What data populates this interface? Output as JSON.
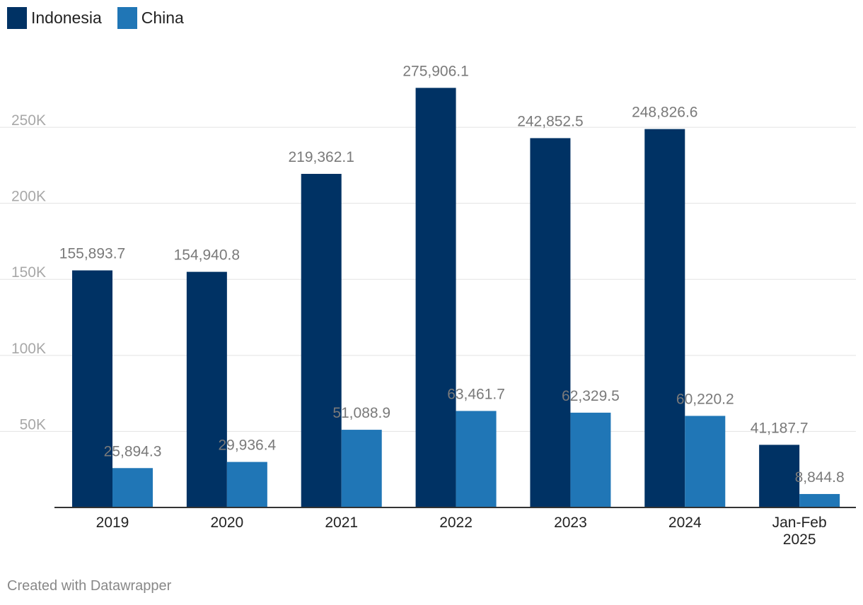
{
  "legend": {
    "items": [
      {
        "label": "Indonesia",
        "color": "#003264"
      },
      {
        "label": "China",
        "color": "#2076b6"
      }
    ]
  },
  "chart_data": {
    "type": "bar",
    "categories": [
      [
        "2019"
      ],
      [
        "2020"
      ],
      [
        "2021"
      ],
      [
        "2022"
      ],
      [
        "2023"
      ],
      [
        "2024"
      ],
      [
        "Jan-Feb",
        "2025"
      ]
    ],
    "series": [
      {
        "name": "Indonesia",
        "color": "#003264",
        "values": [
          155893.7,
          154940.8,
          219362.1,
          275906.1,
          242852.5,
          248826.6,
          41187.7
        ],
        "labels": [
          "155,893.7",
          "154,940.8",
          "219,362.1",
          "275,906.1",
          "242,852.5",
          "248,826.6",
          "41,187.7"
        ]
      },
      {
        "name": "China",
        "color": "#2076b6",
        "values": [
          25894.3,
          29936.4,
          51088.9,
          63461.7,
          62329.5,
          60220.2,
          8844.8
        ],
        "labels": [
          "25,894.3",
          "29,936.4",
          "51,088.9",
          "63,461.7",
          "62,329.5",
          "60,220.2",
          "8,844.8"
        ]
      }
    ],
    "ylim": [
      0,
      290000
    ],
    "yticks": [
      {
        "value": 50000,
        "label": "50K"
      },
      {
        "value": 100000,
        "label": "100K"
      },
      {
        "value": 150000,
        "label": "150K"
      },
      {
        "value": 200000,
        "label": "200K"
      },
      {
        "value": 250000,
        "label": "250K"
      }
    ],
    "grid": true,
    "legend_position": "top-left",
    "xlabel": "",
    "ylabel": ""
  },
  "footer": {
    "credit": "Created with Datawrapper"
  }
}
